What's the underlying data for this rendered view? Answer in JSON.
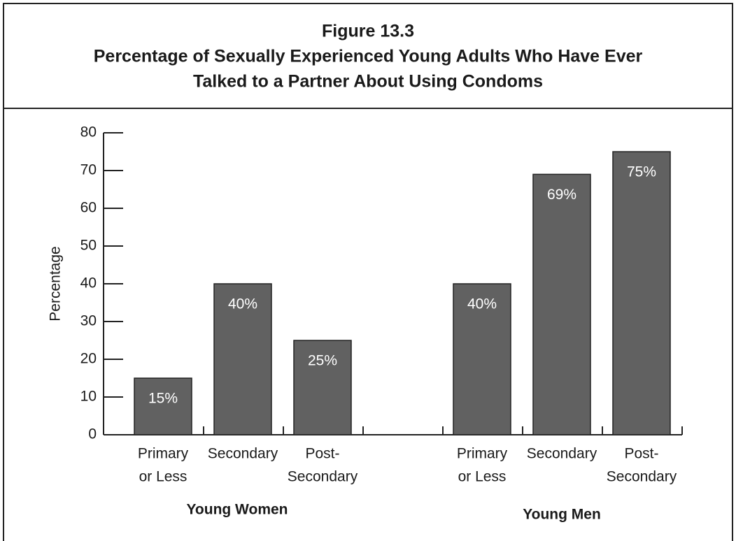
{
  "chart_data": {
    "type": "bar",
    "title": [
      "Figure 13.3",
      "Percentage of Sexually Experienced Young Adults Who Have Ever",
      "Talked to a Partner About Using Condoms"
    ],
    "y_label": "Percentage",
    "color": "#616161",
    "ylim": [
      0,
      80
    ],
    "yticks": [
      0,
      10,
      20,
      30,
      40,
      50,
      60,
      70,
      80
    ],
    "groups": [
      {
        "name": "Young Women",
        "categories": [
          [
            "Primary",
            "or Less"
          ],
          [
            "Secondary"
          ],
          [
            "Post-",
            "Secondary"
          ]
        ],
        "values": [
          15,
          40,
          25
        ],
        "value_labels": [
          "15%",
          "40%",
          "25%"
        ]
      },
      {
        "name": "Young Men",
        "categories": [
          [
            "Primary",
            "or Less"
          ],
          [
            "Secondary"
          ],
          [
            "Post-",
            "Secondary"
          ]
        ],
        "values": [
          40,
          69,
          75
        ],
        "value_labels": [
          "40%",
          "69%",
          "75%"
        ]
      }
    ]
  }
}
